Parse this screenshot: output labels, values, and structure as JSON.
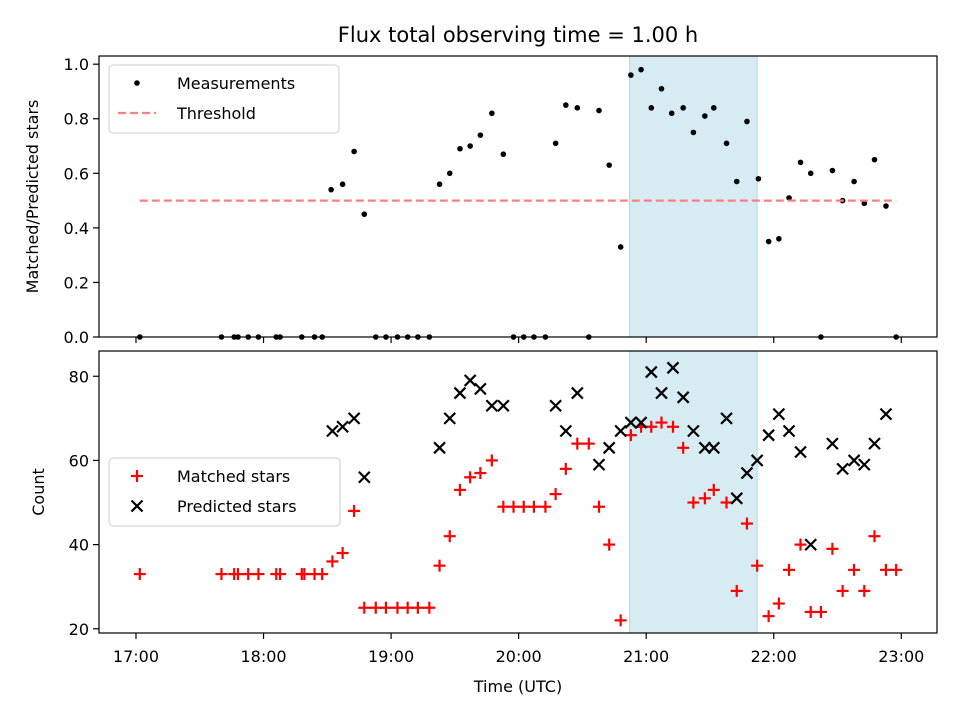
{
  "title": "Flux total observing time = 1.00 h",
  "colors": {
    "measurement": "#000000",
    "threshold": "#ff7f7f",
    "matched": "#ff0000",
    "predicted": "#000000",
    "highlight_band": "#add8e6"
  },
  "chart_data": [
    {
      "type": "scatter",
      "ylabel": "Matched/Predicted stars",
      "ylim": [
        0,
        1.03
      ],
      "yticks": [
        0,
        0.2,
        0.4,
        0.6,
        0.8,
        1.0
      ],
      "ytick_labels": [
        "0.0",
        "0.2",
        "0.4",
        "0.6",
        "0.8",
        "1.0"
      ],
      "xlim": [
        16.71,
        23.28
      ],
      "highlight": {
        "x_start": 20.87,
        "x_end": 21.87
      },
      "legend": {
        "position": "upper-left",
        "entries": [
          "Measurements",
          "Threshold"
        ]
      },
      "series": [
        {
          "name": "Measurements",
          "marker": "dot",
          "x": [
            17.03,
            17.67,
            17.77,
            17.8,
            17.88,
            17.96,
            18.1,
            18.13,
            18.3,
            18.4,
            18.46,
            18.53,
            18.62,
            18.71,
            18.79,
            18.88,
            18.96,
            19.05,
            19.13,
            19.21,
            19.3,
            19.38,
            19.46,
            19.54,
            19.62,
            19.7,
            19.79,
            19.88,
            19.96,
            20.04,
            20.12,
            20.21,
            20.29,
            20.37,
            20.46,
            20.55,
            20.63,
            20.71,
            20.8,
            20.88,
            20.96,
            21.04,
            21.12,
            21.2,
            21.29,
            21.37,
            21.46,
            21.53,
            21.63,
            21.71,
            21.79,
            21.88,
            21.96,
            22.04,
            22.12,
            22.21,
            22.29,
            22.37,
            22.46,
            22.54,
            22.63,
            22.71,
            22.79,
            22.88,
            22.96
          ],
          "y": [
            0.0,
            0.0,
            0.0,
            0.0,
            0.0,
            0.0,
            0.0,
            0.0,
            0.0,
            0.0,
            0.0,
            0.54,
            0.56,
            0.68,
            0.45,
            0.0,
            0.0,
            0.0,
            0.0,
            0.0,
            0.0,
            0.56,
            0.6,
            0.69,
            0.7,
            0.74,
            0.82,
            0.67,
            0.0,
            0.0,
            0.0,
            0.0,
            0.71,
            0.85,
            0.84,
            0.0,
            0.83,
            0.63,
            0.33,
            0.96,
            0.98,
            0.84,
            0.91,
            0.82,
            0.84,
            0.75,
            0.81,
            0.84,
            0.71,
            0.57,
            0.79,
            0.58,
            0.35,
            0.36,
            0.51,
            0.64,
            0.6,
            0.0,
            0.61,
            0.5,
            0.57,
            0.49,
            0.65,
            0.48,
            0.0
          ]
        },
        {
          "name": "Threshold",
          "marker": "dashed-line",
          "x": [
            17.03,
            22.96
          ],
          "y": [
            0.5,
            0.5
          ]
        }
      ]
    },
    {
      "type": "scatter",
      "xlabel": "Time (UTC)",
      "ylabel": "Count",
      "ylim": [
        19,
        86
      ],
      "yticks": [
        20,
        40,
        60,
        80
      ],
      "ytick_labels": [
        "20",
        "40",
        "60",
        "80"
      ],
      "xlim": [
        16.71,
        23.28
      ],
      "xticks": [
        17,
        18,
        19,
        20,
        21,
        22,
        23
      ],
      "xtick_labels": [
        "17:00",
        "18:00",
        "19:00",
        "20:00",
        "21:00",
        "22:00",
        "23:00"
      ],
      "highlight": {
        "x_start": 20.87,
        "x_end": 21.87
      },
      "legend": {
        "position": "center-left",
        "entries": [
          "Matched stars",
          "Predicted stars"
        ]
      },
      "series": [
        {
          "name": "Matched stars",
          "marker": "plus",
          "x": [
            17.03,
            17.67,
            17.77,
            17.8,
            17.88,
            17.96,
            18.1,
            18.13,
            18.3,
            18.32,
            18.4,
            18.46,
            18.54,
            18.62,
            18.71,
            18.79,
            18.88,
            18.96,
            19.05,
            19.13,
            19.21,
            19.3,
            19.38,
            19.46,
            19.54,
            19.62,
            19.7,
            19.79,
            19.88,
            19.96,
            20.04,
            20.12,
            20.21,
            20.29,
            20.37,
            20.46,
            20.55,
            20.63,
            20.71,
            20.8,
            20.88,
            20.96,
            21.04,
            21.12,
            21.21,
            21.29,
            21.37,
            21.46,
            21.53,
            21.63,
            21.71,
            21.79,
            21.87,
            21.96,
            22.04,
            22.12,
            22.21,
            22.29,
            22.37,
            22.46,
            22.54,
            22.63,
            22.71,
            22.79,
            22.88,
            22.96
          ],
          "y": [
            33,
            33,
            33,
            33,
            33,
            33,
            33,
            33,
            33,
            33,
            33,
            33,
            36,
            38,
            48,
            25,
            25,
            25,
            25,
            25,
            25,
            25,
            35,
            42,
            53,
            56,
            57,
            60,
            49,
            49,
            49,
            49,
            49,
            52,
            58,
            64,
            64,
            49,
            40,
            22,
            66,
            68,
            68,
            69,
            68,
            63,
            50,
            51,
            53,
            50,
            29,
            45,
            35,
            23,
            26,
            34,
            40,
            24,
            24,
            39,
            29,
            34,
            29,
            42,
            34,
            34
          ]
        },
        {
          "name": "Predicted stars",
          "marker": "x",
          "x": [
            18.54,
            18.62,
            18.71,
            18.79,
            19.38,
            19.46,
            19.54,
            19.62,
            19.7,
            19.79,
            19.88,
            20.29,
            20.37,
            20.46,
            20.63,
            20.71,
            20.8,
            20.88,
            20.96,
            21.04,
            21.12,
            21.21,
            21.29,
            21.37,
            21.46,
            21.53,
            21.63,
            21.71,
            21.79,
            21.87,
            21.96,
            22.04,
            22.12,
            22.21,
            22.29,
            22.46,
            22.54,
            22.63,
            22.71,
            22.79,
            22.88
          ],
          "y": [
            67,
            68,
            70,
            56,
            63,
            70,
            76,
            79,
            77,
            73,
            73,
            73,
            67,
            76,
            59,
            63,
            67,
            69,
            69,
            81,
            76,
            82,
            75,
            67,
            63,
            63,
            70,
            51,
            57,
            60,
            66,
            71,
            67,
            62,
            40,
            64,
            58,
            60,
            59,
            64,
            71
          ]
        }
      ]
    }
  ]
}
